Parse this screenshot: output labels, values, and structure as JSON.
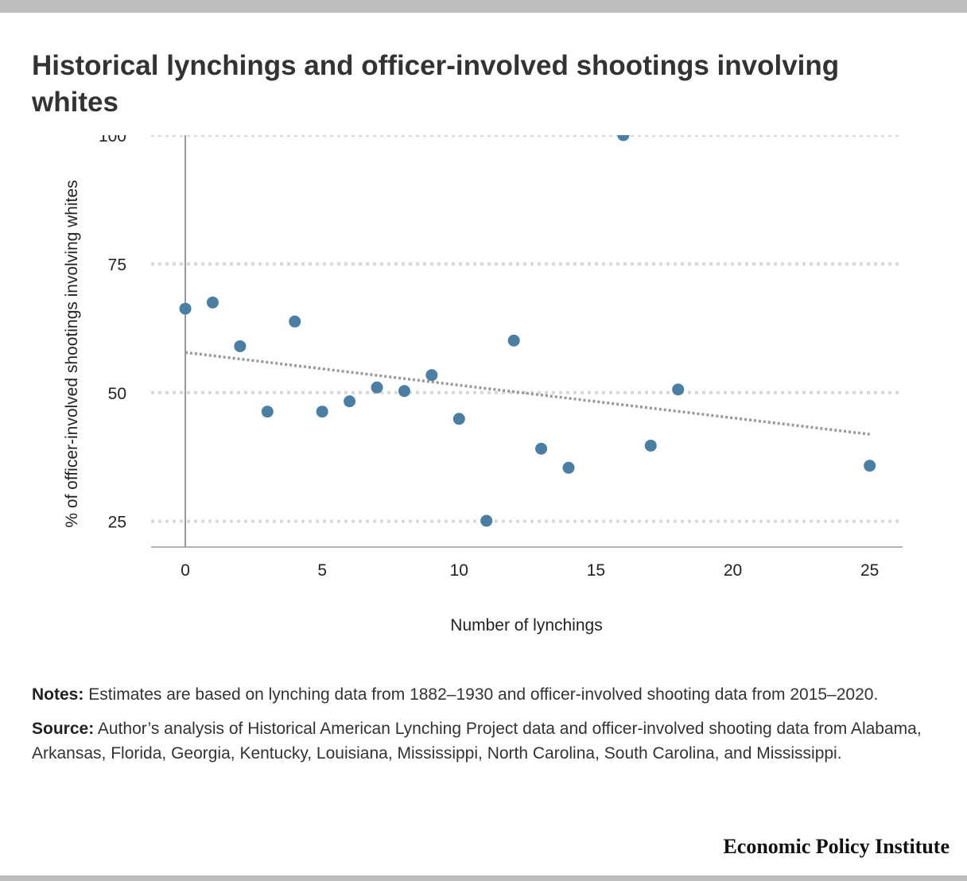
{
  "header": {
    "title": "Historical lynchings and officer-involved shootings involving whites"
  },
  "chart_data": {
    "type": "scatter",
    "title": "Historical lynchings and officer-involved shootings involving whites",
    "xlabel": "Number of lynchings",
    "ylabel": "% of officer-involved shootings involving whites",
    "xlim": [
      -1.25,
      26.2
    ],
    "ylim": [
      20,
      100
    ],
    "x_ticks": [
      0,
      5,
      10,
      15,
      20,
      25
    ],
    "y_ticks": [
      25,
      50,
      75,
      100
    ],
    "grid": "horizontal dotted",
    "point_color": "#4a7fa3",
    "trend_color": "#999999",
    "points": [
      {
        "x": 0,
        "y": 66.3
      },
      {
        "x": 1,
        "y": 67.5
      },
      {
        "x": 2,
        "y": 59.0
      },
      {
        "x": 3,
        "y": 46.3
      },
      {
        "x": 4,
        "y": 63.8
      },
      {
        "x": 5,
        "y": 46.3
      },
      {
        "x": 6,
        "y": 48.3
      },
      {
        "x": 7,
        "y": 51.0
      },
      {
        "x": 8,
        "y": 50.3
      },
      {
        "x": 9,
        "y": 53.4
      },
      {
        "x": 10,
        "y": 44.9
      },
      {
        "x": 11,
        "y": 25.1
      },
      {
        "x": 12,
        "y": 60.1
      },
      {
        "x": 13,
        "y": 39.1
      },
      {
        "x": 14,
        "y": 35.4
      },
      {
        "x": 16,
        "y": 100.0
      },
      {
        "x": 17,
        "y": 39.7
      },
      {
        "x": 18,
        "y": 50.6
      },
      {
        "x": 25,
        "y": 35.8
      }
    ],
    "trendline": {
      "x": [
        0,
        25
      ],
      "y": [
        57.8,
        41.9
      ]
    }
  },
  "footer": {
    "notes_label": "Notes:",
    "notes_text": "Estimates are based on lynching data from 1882–1930 and officer-involved shooting data from 2015–2020.",
    "source_label": "Source:",
    "source_text": "Author’s analysis of Historical American Lynching Project data and officer-involved shooting data from Alabama, Arkansas, Florida, Georgia, Kentucky, Louisiana, Mississippi, North Carolina, South Carolina, and Mississippi.",
    "brand": "Economic Policy Institute"
  }
}
